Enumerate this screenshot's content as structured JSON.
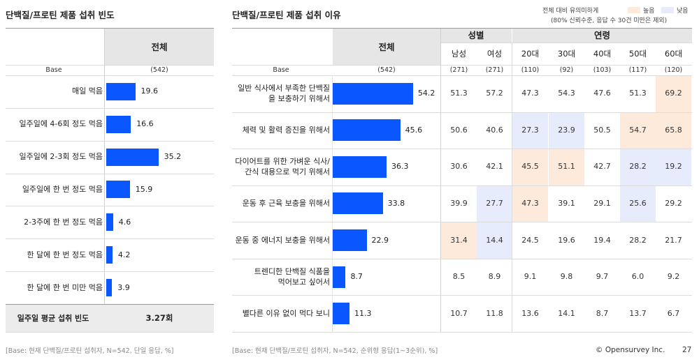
{
  "left": {
    "title": "단백질/프로틴 제품 섭취 빈도",
    "col_header": "전체",
    "base_label": "Base",
    "base_value": "(542)",
    "summary_label": "일주일 평균 섭취 빈도",
    "summary_value": "3.27회",
    "footnote": "[Base: 현재 단백질/프로틴 섭취자, N=542, 단일 응답, %]"
  },
  "right": {
    "title": "단백질/프로틴 제품 섭취 이유",
    "legend": {
      "note1": "전체 대비 유의미하게",
      "note2": "(80% 신뢰수준, 응답 수 30건 미만은 제외)",
      "high_label": "높음",
      "low_label": "낮음",
      "high_color": "#fdeadb",
      "low_color": "#e6ecfb"
    },
    "total_header": "전체",
    "group_gender": "성별",
    "group_age": "연령",
    "sub_headers": [
      "남성",
      "여성",
      "20대",
      "30대",
      "40대",
      "50대",
      "60대"
    ],
    "base_label": "Base",
    "base_total": "(542)",
    "base_values": [
      "(271)",
      "(271)",
      "(110)",
      "(92)",
      "(103)",
      "(117)",
      "(120)"
    ],
    "rows_text": [
      {
        "label_l1": "일반 식사에서 부족한 단백질",
        "label_l2": "을 보충하기 위해서",
        "total": "54.2",
        "cells": [
          "51.3",
          "57.2",
          "47.3",
          "54.3",
          "47.6",
          "51.3",
          "69.2"
        ]
      },
      {
        "label_l1": "체력 및 활력 증진을 위해서",
        "label_l2": "",
        "total": "45.6",
        "cells": [
          "50.6",
          "40.6",
          "27.3",
          "23.9",
          "50.5",
          "54.7",
          "65.8"
        ]
      },
      {
        "label_l1": "다이어트를 위한 가벼운 식사/",
        "label_l2": "간식 대용으로 먹기 위해서",
        "total": "36.3",
        "cells": [
          "30.6",
          "42.1",
          "45.5",
          "51.1",
          "42.7",
          "28.2",
          "19.2"
        ]
      },
      {
        "label_l1": "운동 후 근육 보충을 위해서",
        "label_l2": "",
        "total": "33.8",
        "cells": [
          "39.9",
          "27.7",
          "47.3",
          "39.1",
          "29.1",
          "25.6",
          "29.2"
        ]
      },
      {
        "label_l1": "운동 중 에너지 보충을 위해서",
        "label_l2": "",
        "total": "22.9",
        "cells": [
          "31.4",
          "14.4",
          "24.5",
          "19.6",
          "19.4",
          "28.2",
          "21.7"
        ]
      },
      {
        "label_l1": "트렌디한 단백질 식품을",
        "label_l2": "먹어보고 싶어서",
        "total": "8.7",
        "cells": [
          "8.5",
          "8.9",
          "9.1",
          "9.8",
          "9.7",
          "6.0",
          "9.2"
        ]
      },
      {
        "label_l1": "별다른 이유 없이 먹다 보니",
        "label_l2": "",
        "total": "11.3",
        "cells": [
          "10.7",
          "11.8",
          "13.6",
          "14.1",
          "8.7",
          "13.7",
          "6.7"
        ]
      }
    ],
    "sig": [
      [
        "",
        "",
        "",
        "",
        "",
        "",
        "H"
      ],
      [
        "",
        "",
        "L",
        "L",
        "",
        "H",
        "H"
      ],
      [
        "",
        "",
        "H",
        "H",
        "",
        "L",
        "L"
      ],
      [
        "",
        "L",
        "H",
        "",
        "",
        "L",
        ""
      ],
      [
        "H",
        "L",
        "",
        "",
        "",
        "",
        ""
      ],
      [
        "",
        "",
        "",
        "",
        "",
        "",
        ""
      ],
      [
        "",
        "",
        "",
        "",
        "",
        "",
        ""
      ]
    ],
    "footnote": "[Base: 현재 단백질/프로틴 섭취자, N=542, 순위형 응답(1~3순위), %]"
  },
  "footer": {
    "brand": "© Opensurvey Inc.",
    "page": "27"
  },
  "chart_data": [
    {
      "type": "bar",
      "orientation": "horizontal",
      "title": "단백질/프로틴 제품 섭취 빈도",
      "categories": [
        "매일 먹음",
        "일주일에 4-6회 정도 먹음",
        "일주일에 2-3회 정도 먹음",
        "일주일에 한 번 정도 먹음",
        "2-3주에 한 번 정도 먹음",
        "한 달에 한 번 정도 먹음",
        "한 달에 한 번 미만 먹음"
      ],
      "values": [
        19.6,
        16.6,
        35.2,
        15.9,
        4.6,
        4.2,
        3.9
      ],
      "unit": "%",
      "color": "#0b57ff"
    },
    {
      "type": "bar",
      "orientation": "horizontal",
      "title": "단백질/프로틴 제품 섭취 이유",
      "categories": [
        "일반 식사에서 부족한 단백질을 보충하기 위해서",
        "체력 및 활력 증진을 위해서",
        "다이어트를 위한 가벼운 식사/간식 대용으로 먹기 위해서",
        "운동 후 근육 보충을 위해서",
        "운동 중 에너지 보충을 위해서",
        "트렌디한 단백질 식품을 먹어보고 싶어서",
        "별다른 이유 없이 먹다 보니"
      ],
      "values": [
        54.2,
        45.6,
        36.3,
        33.8,
        22.9,
        8.7,
        11.3
      ],
      "unit": "%",
      "color": "#0b57ff"
    }
  ]
}
